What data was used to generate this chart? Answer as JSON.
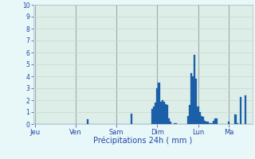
{
  "bar_color": "#1a5fa8",
  "bar_edge_color": "#1a5fa8",
  "background_color": "#e8f8f8",
  "plot_bg_color": "#ddeee8",
  "grid_color_h": "#c8d8cc",
  "grid_color_v": "#9aabb0",
  "text_color": "#2244aa",
  "ylim": [
    0,
    10
  ],
  "yticks": [
    0,
    1,
    2,
    3,
    4,
    5,
    6,
    7,
    8,
    9,
    10
  ],
  "xlabel": "Précipitations 24h ( mm )",
  "day_labels": [
    "Jeu",
    "Ven",
    "Sam",
    "Dim",
    "Lun",
    "Ma"
  ],
  "day_positions": [
    0,
    24,
    48,
    72,
    96,
    114
  ],
  "n_bars": 120,
  "values": [
    0,
    0,
    0,
    0,
    0,
    0,
    0,
    0,
    0,
    0,
    0,
    0,
    0,
    0,
    0,
    0,
    0,
    0,
    0,
    0,
    0,
    0,
    0,
    0,
    0,
    0,
    0,
    0,
    0,
    0,
    0,
    0.4,
    0,
    0,
    0,
    0,
    0,
    0,
    0,
    0,
    0,
    0,
    0,
    0,
    0,
    0,
    0,
    0,
    0,
    0,
    0,
    0,
    0,
    0,
    0,
    0,
    0,
    0.9,
    0,
    0,
    0,
    0,
    0,
    0,
    0,
    0,
    0,
    0,
    0,
    1.3,
    1.5,
    1.8,
    3.0,
    3.5,
    1.9,
    2.0,
    1.9,
    1.7,
    1.6,
    0.5,
    0.2,
    0,
    0.1,
    0.1,
    0,
    0,
    0,
    0,
    0,
    0,
    0.7,
    1.6,
    4.3,
    4.0,
    5.8,
    3.8,
    1.5,
    1.0,
    0.7,
    0.6,
    0.3,
    0.2,
    0.2,
    0.1,
    0.1,
    0.3,
    0.5,
    0.5,
    0,
    0,
    0,
    0,
    0,
    0,
    0.2,
    0,
    0,
    0,
    0.8,
    0.1,
    0,
    2.3,
    0,
    0,
    2.4,
    0,
    0,
    0
  ]
}
